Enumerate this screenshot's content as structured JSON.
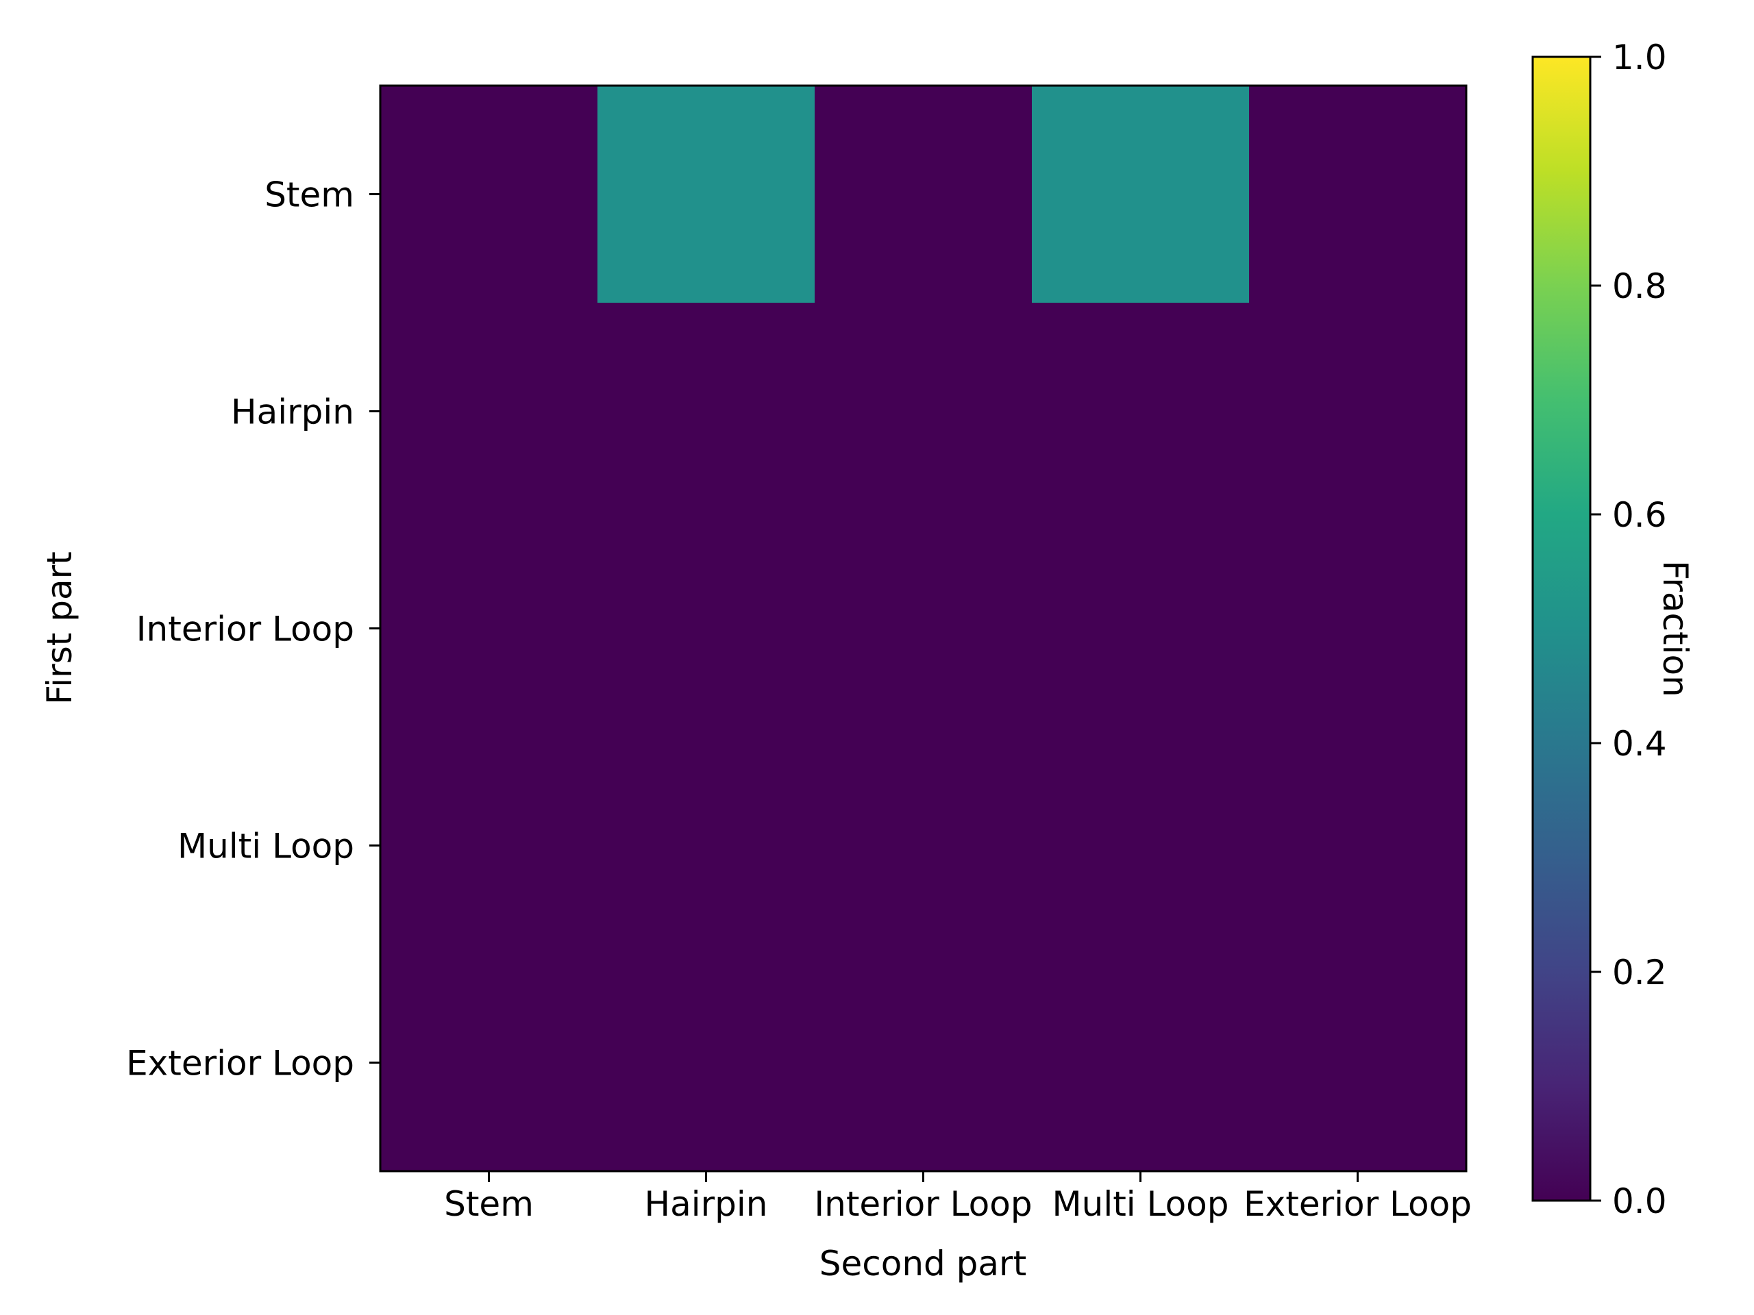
{
  "chart_data": {
    "type": "heatmap",
    "x_categories": [
      "Stem",
      "Hairpin",
      "Interior Loop",
      "Multi Loop",
      "Exterior Loop"
    ],
    "y_categories": [
      "Stem",
      "Hairpin",
      "Interior Loop",
      "Multi Loop",
      "Exterior Loop"
    ],
    "values": [
      [
        0.0,
        0.5,
        0.0,
        0.5,
        0.0
      ],
      [
        0.0,
        0.0,
        0.0,
        0.0,
        0.0
      ],
      [
        0.0,
        0.0,
        0.0,
        0.0,
        0.0
      ],
      [
        0.0,
        0.0,
        0.0,
        0.0,
        0.0
      ],
      [
        0.0,
        0.0,
        0.0,
        0.0,
        0.0
      ]
    ],
    "xlabel": "Second part",
    "ylabel": "First part",
    "colorbar": {
      "label": "Fraction",
      "range": [
        0.0,
        1.0
      ],
      "ticks": [
        "0.0",
        "0.2",
        "0.4",
        "0.6",
        "0.8",
        "1.0"
      ],
      "colormap": "viridis"
    }
  }
}
